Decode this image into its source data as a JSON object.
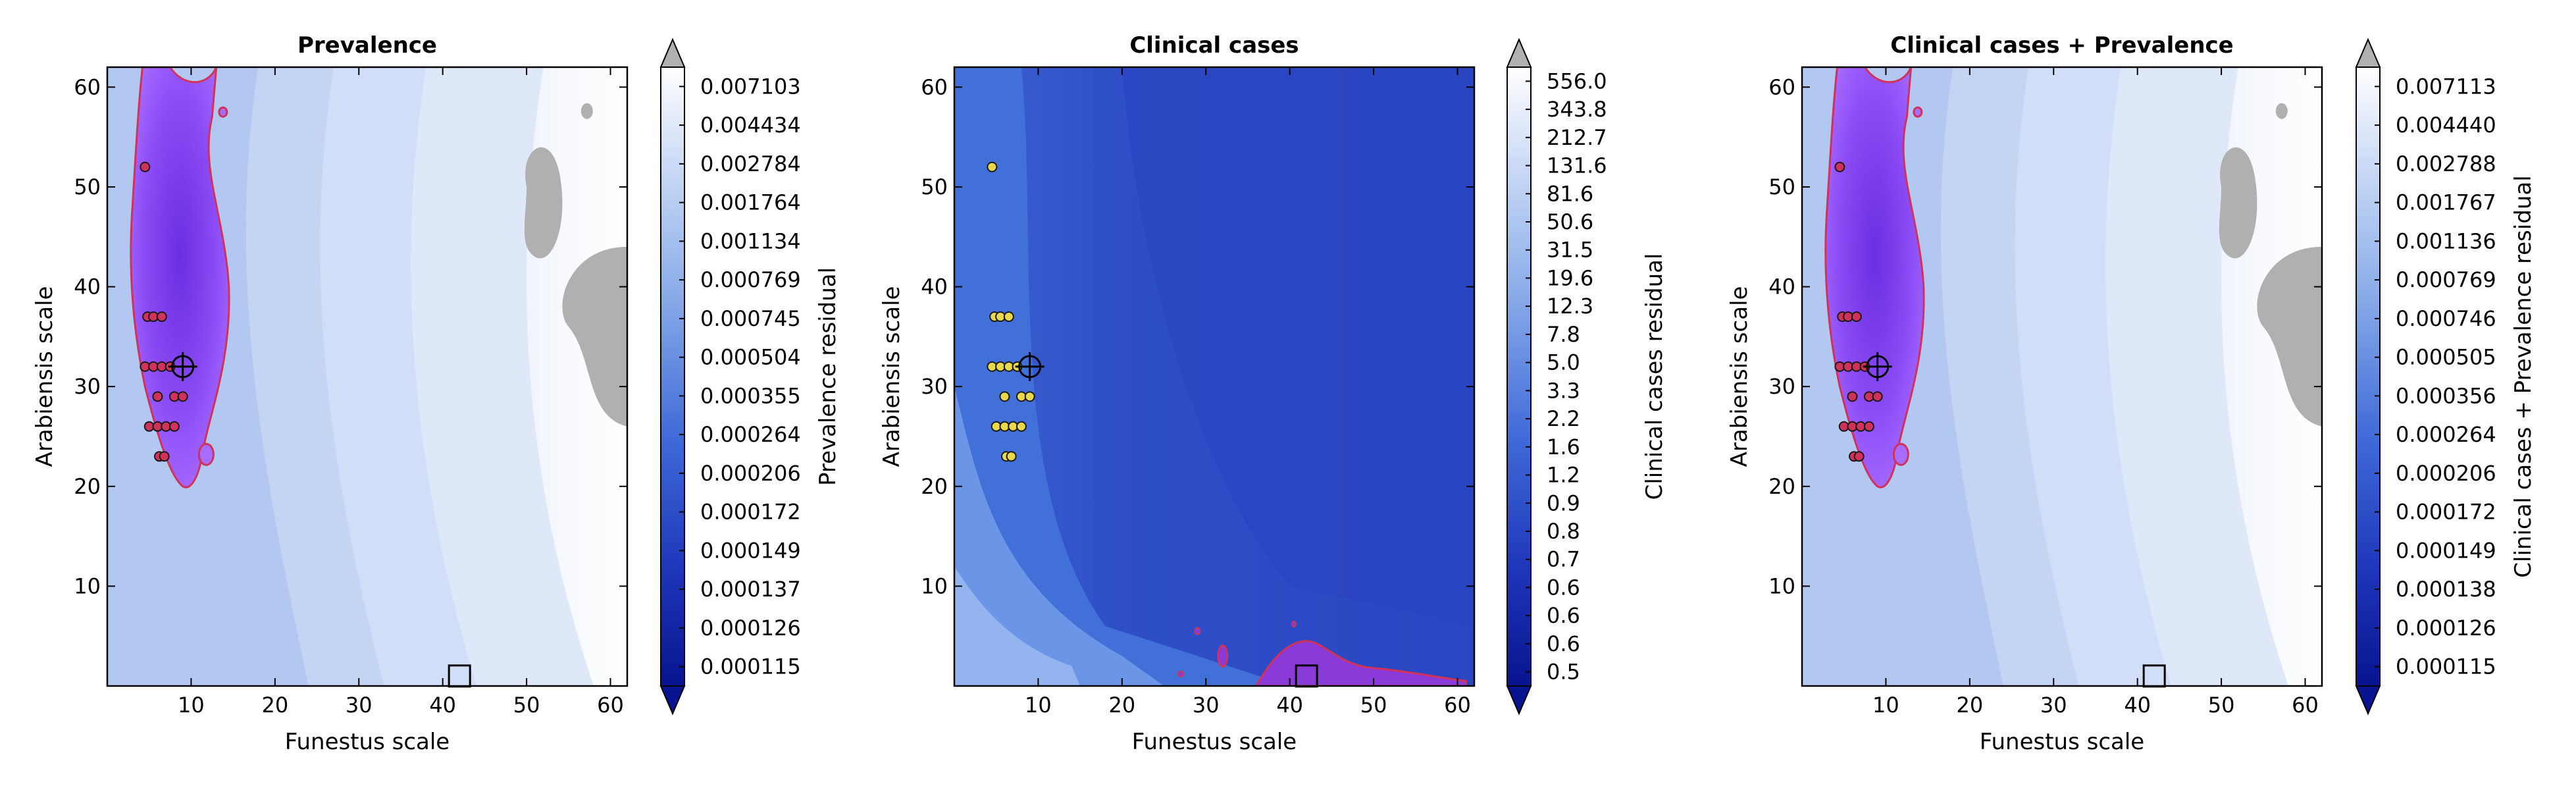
{
  "chart_data": [
    {
      "type": "heatmap",
      "title": "Prevalence",
      "xlabel": "Funestus scale",
      "ylabel": "Arabiensis scale",
      "xlim": [
        0,
        62
      ],
      "ylim": [
        0,
        62
      ],
      "xticks": [
        "10",
        "20",
        "30",
        "40",
        "50",
        "60"
      ],
      "yticks": [
        "10",
        "20",
        "30",
        "40",
        "50",
        "60"
      ],
      "colorbar_label": "Prevalence residual",
      "colorbar_ticks": [
        "0.007103",
        "0.004434",
        "0.002784",
        "0.001764",
        "0.001134",
        "0.000769",
        "0.000745",
        "0.000504",
        "0.000355",
        "0.000264",
        "0.000206",
        "0.000172",
        "0.000149",
        "0.000137",
        "0.000126",
        "0.000115"
      ],
      "best_fit": [
        9,
        32
      ],
      "reference_point": [
        42,
        1
      ],
      "highlight_region": "left",
      "grey_region": true
    },
    {
      "type": "heatmap",
      "title": "Clinical cases",
      "xlabel": "Funestus scale",
      "ylabel": "Arabiensis scale",
      "xlim": [
        0,
        62
      ],
      "ylim": [
        0,
        62
      ],
      "xticks": [
        "10",
        "20",
        "30",
        "40",
        "50",
        "60"
      ],
      "yticks": [
        "10",
        "20",
        "30",
        "40",
        "50",
        "60"
      ],
      "colorbar_label": "Clinical cases residual",
      "colorbar_ticks": [
        "556.0",
        "343.8",
        "212.7",
        "131.6",
        "81.6",
        "50.6",
        "31.5",
        "19.6",
        "12.3",
        "7.8",
        "5.0",
        "3.3",
        "2.2",
        "1.6",
        "1.2",
        "0.9",
        "0.8",
        "0.7",
        "0.6",
        "0.6",
        "0.6",
        "0.5"
      ],
      "best_fit": [
        9,
        32
      ],
      "reference_point": [
        42,
        1
      ],
      "highlight_region": "bottom",
      "grey_region": false
    },
    {
      "type": "heatmap",
      "title": "Clinical cases + Prevalence",
      "xlabel": "Funestus scale",
      "ylabel": "Arabiensis scale",
      "xlim": [
        0,
        62
      ],
      "ylim": [
        0,
        62
      ],
      "xticks": [
        "10",
        "20",
        "30",
        "40",
        "50",
        "60"
      ],
      "yticks": [
        "10",
        "20",
        "30",
        "40",
        "50",
        "60"
      ],
      "colorbar_label": "Clinical cases + Prevalence residual",
      "colorbar_ticks": [
        "0.007113",
        "0.004440",
        "0.002788",
        "0.001767",
        "0.001136",
        "0.000769",
        "0.000746",
        "0.000505",
        "0.000356",
        "0.000264",
        "0.000206",
        "0.000172",
        "0.000149",
        "0.000138",
        "0.000126",
        "0.000115"
      ],
      "best_fit": [
        9,
        32
      ],
      "reference_point": [
        42,
        1
      ],
      "highlight_region": "left",
      "grey_region": true
    }
  ],
  "colors": {
    "deep_blue": "#0a1a9e",
    "mid_blue": "#3f6ad8",
    "light_blue": "#c8d8f5",
    "white": "#ffffff",
    "grey": "#b0b0b0",
    "highlight_fill": "#9b4dff",
    "highlight_edge": "#d0325a"
  }
}
